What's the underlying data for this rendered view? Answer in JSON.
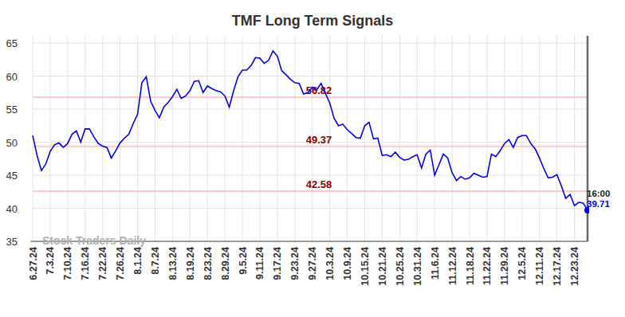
{
  "chart_data": {
    "type": "line",
    "title": "TMF Long Term Signals",
    "categories": [
      "6.27.24",
      null,
      null,
      null,
      "7.3.24",
      null,
      null,
      null,
      "7.10.24",
      null,
      null,
      null,
      "7.16.24",
      null,
      null,
      null,
      "7.22.24",
      null,
      null,
      null,
      "7.26.24",
      null,
      null,
      null,
      "8.1.24",
      null,
      null,
      null,
      "8.7.24",
      null,
      null,
      null,
      "8.13.24",
      null,
      null,
      null,
      "8.19.24",
      null,
      null,
      null,
      "8.23.24",
      null,
      null,
      null,
      "8.29.24",
      null,
      null,
      null,
      "9.5.24",
      null,
      null,
      null,
      "9.11.24",
      null,
      null,
      null,
      "9.17.24",
      null,
      null,
      null,
      "9.23.24",
      null,
      null,
      null,
      "9.27.24",
      null,
      null,
      null,
      "10.3.24",
      null,
      null,
      null,
      "10.9.24",
      null,
      null,
      null,
      "10.15.24",
      null,
      null,
      null,
      "10.21.24",
      null,
      null,
      null,
      "10.25.24",
      null,
      null,
      null,
      "10.31.24",
      null,
      null,
      null,
      "11.6.24",
      null,
      null,
      null,
      "11.12.24",
      null,
      null,
      null,
      "11.18.24",
      null,
      null,
      null,
      "11.22.24",
      null,
      null,
      null,
      "11.29.24",
      null,
      null,
      null,
      "12.5.24",
      null,
      null,
      null,
      "12.11.24",
      null,
      null,
      null,
      "12.17.24",
      null,
      null,
      null,
      "12.23.24",
      null,
      null,
      null
    ],
    "values": [
      51.0,
      48.0,
      45.7,
      46.7,
      48.6,
      49.6,
      49.9,
      49.2,
      49.8,
      51.2,
      51.7,
      50.0,
      52.0,
      52.0,
      50.8,
      49.8,
      49.4,
      49.2,
      47.6,
      48.7,
      49.9,
      50.6,
      51.2,
      52.8,
      54.2,
      59.0,
      59.9,
      56.2,
      54.8,
      53.7,
      55.3,
      56.0,
      56.9,
      58.0,
      56.6,
      57.0,
      57.8,
      59.2,
      59.3,
      57.5,
      58.5,
      58.1,
      57.8,
      57.6,
      57.0,
      55.3,
      57.8,
      59.9,
      60.9,
      60.9,
      61.6,
      62.8,
      62.7,
      61.9,
      62.4,
      63.8,
      63.0,
      60.8,
      60.2,
      59.5,
      59.0,
      58.9,
      57.3,
      57.5,
      58.3,
      57.9,
      58.9,
      57.4,
      55.9,
      53.6,
      52.5,
      52.7,
      51.9,
      51.3,
      50.7,
      50.6,
      52.5,
      53.0,
      50.5,
      50.6,
      48.0,
      48.1,
      47.8,
      48.5,
      47.7,
      47.3,
      47.4,
      47.8,
      48.1,
      46.1,
      48.2,
      48.8,
      45.0,
      46.6,
      48.2,
      47.6,
      45.4,
      44.2,
      44.8,
      44.4,
      44.6,
      45.3,
      45.0,
      44.7,
      44.8,
      48.2,
      47.8,
      48.7,
      49.8,
      50.4,
      49.2,
      50.7,
      51.0,
      51.0,
      49.8,
      49.0,
      47.6,
      46.0,
      44.6,
      44.7,
      45.1,
      43.4,
      41.5,
      42.1,
      40.4,
      40.9,
      40.8,
      39.71
    ],
    "color": "#0000ee",
    "ylim": [
      35,
      65
    ],
    "yticks": [
      35,
      40,
      45,
      50,
      55,
      60,
      65
    ],
    "grid": true,
    "reference_lines": [
      56.82,
      49.37,
      42.58
    ],
    "last_time": "16:00",
    "watermark": "Stock Traders Daily"
  }
}
